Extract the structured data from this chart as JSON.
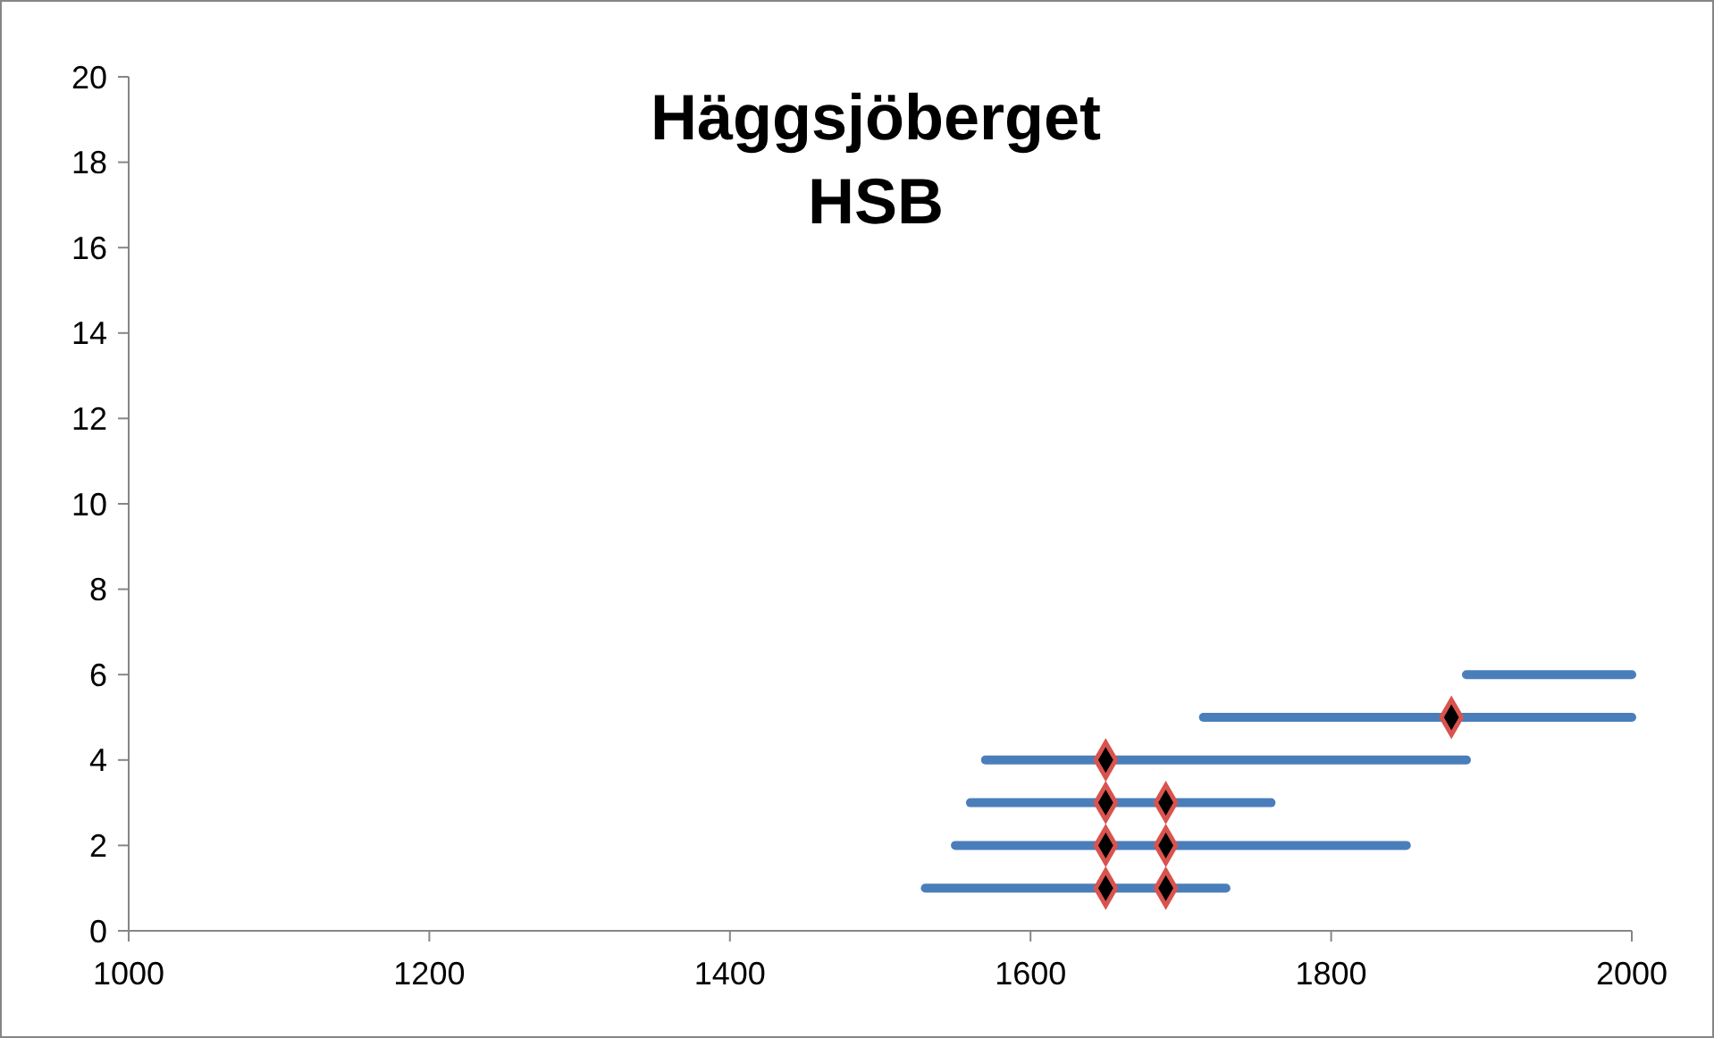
{
  "chart_data": {
    "type": "line",
    "title": "Häggsjöberget\nHSB",
    "xlim": [
      1000,
      2000
    ],
    "xticks": [
      1000,
      1200,
      1400,
      1600,
      1800,
      2000
    ],
    "ylim": [
      0,
      20
    ],
    "yticks": [
      0,
      2,
      4,
      6,
      8,
      10,
      12,
      14,
      16,
      18,
      20
    ],
    "series": [
      {
        "color": "#4a7ebb",
        "x": [
          1530,
          1730
        ],
        "values": [
          1,
          1
        ]
      },
      {
        "color": "#4a7ebb",
        "x": [
          1550,
          1850
        ],
        "values": [
          2,
          2
        ]
      },
      {
        "color": "#4a7ebb",
        "x": [
          1560,
          1760
        ],
        "values": [
          3,
          3
        ]
      },
      {
        "color": "#4a7ebb",
        "x": [
          1570,
          1890
        ],
        "values": [
          4,
          4
        ]
      },
      {
        "color": "#4a7ebb",
        "x": [
          1715,
          2000
        ],
        "values": [
          5,
          5
        ]
      },
      {
        "color": "#4a7ebb",
        "x": [
          1890,
          2000
        ],
        "values": [
          6,
          6
        ]
      },
      {
        "type": "scatter",
        "marker": "diamond",
        "color": "#000000",
        "x": [
          1650,
          1690,
          1650,
          1690,
          1650,
          1690,
          1650,
          1880
        ],
        "values": [
          1,
          1,
          2,
          2,
          3,
          3,
          4,
          5
        ]
      }
    ]
  }
}
